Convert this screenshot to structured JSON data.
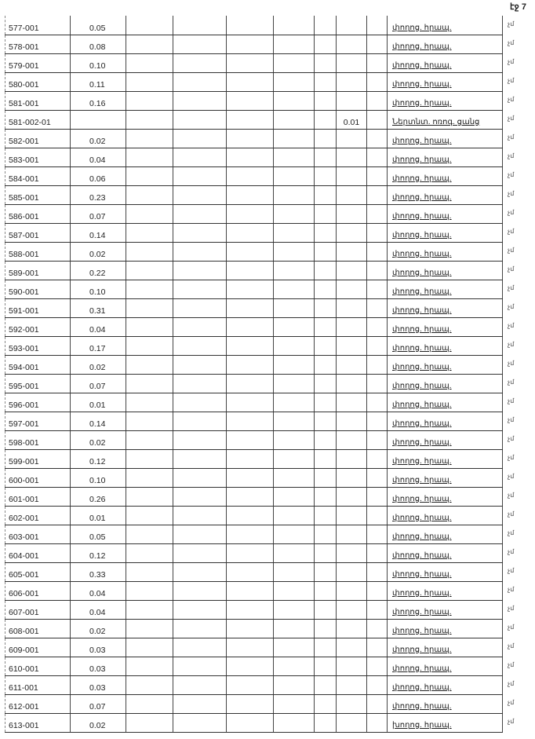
{
  "page_label": "էջ 7",
  "rows": [
    {
      "code": "577-001",
      "area": "0.05",
      "other": "",
      "type": "փողոց. հրապ.",
      "mark": "չմ"
    },
    {
      "code": "578-001",
      "area": "0.08",
      "other": "",
      "type": "փողոց. հրապ.",
      "mark": "չմ"
    },
    {
      "code": "579-001",
      "area": "0.10",
      "other": "",
      "type": "փողոց. հրապ.",
      "mark": "չմ"
    },
    {
      "code": "580-001",
      "area": "0.11",
      "other": "",
      "type": "փողոց. հրապ.",
      "mark": "չմ"
    },
    {
      "code": "581-001",
      "area": "0.16",
      "other": "",
      "type": "փողոց. հրապ.",
      "mark": "չմ"
    },
    {
      "code": "581-002-01",
      "area": "",
      "other": "0.01",
      "type": "Ներտնտ. ոռոգ. ցանց",
      "mark": "չմ"
    },
    {
      "code": "582-001",
      "area": "0.02",
      "other": "",
      "type": "փողոց. հրապ.",
      "mark": "չմ"
    },
    {
      "code": "583-001",
      "area": "0.04",
      "other": "",
      "type": "փողոց. հրապ.",
      "mark": "չմ"
    },
    {
      "code": "584-001",
      "area": "0.06",
      "other": "",
      "type": "փողոց. հրապ.",
      "mark": "չմ"
    },
    {
      "code": "585-001",
      "area": "0.23",
      "other": "",
      "type": "փողոց. հրապ.",
      "mark": "չմ"
    },
    {
      "code": "586-001",
      "area": "0.07",
      "other": "",
      "type": "փողոց. հրապ.",
      "mark": "չմ"
    },
    {
      "code": "587-001",
      "area": "0.14",
      "other": "",
      "type": "փողոց. հրապ.",
      "mark": "չմ"
    },
    {
      "code": "588-001",
      "area": "0.02",
      "other": "",
      "type": "փողոց. հրապ.",
      "mark": "չմ"
    },
    {
      "code": "589-001",
      "area": "0.22",
      "other": "",
      "type": "փողոց. հրապ.",
      "mark": "չմ"
    },
    {
      "code": "590-001",
      "area": "0.10",
      "other": "",
      "type": "փողոց. հրապ.",
      "mark": "չմ"
    },
    {
      "code": "591-001",
      "area": "0.31",
      "other": "",
      "type": "փողոց. հրապ.",
      "mark": "չմ"
    },
    {
      "code": "592-001",
      "area": "0.04",
      "other": "",
      "type": "փողոց. հրապ.",
      "mark": "չմ"
    },
    {
      "code": "593-001",
      "area": "0.17",
      "other": "",
      "type": "փողոց. հրապ.",
      "mark": "չմ"
    },
    {
      "code": "594-001",
      "area": "0.02",
      "other": "",
      "type": "փողոց. հրապ.",
      "mark": "չմ"
    },
    {
      "code": "595-001",
      "area": "0.07",
      "other": "",
      "type": "փողոց. հրապ.",
      "mark": "չմ"
    },
    {
      "code": "596-001",
      "area": "0.01",
      "other": "",
      "type": "փողոց. հրապ.",
      "mark": "չմ"
    },
    {
      "code": "597-001",
      "area": "0.14",
      "other": "",
      "type": "փողոց. հրապ.",
      "mark": "չմ"
    },
    {
      "code": "598-001",
      "area": "0.02",
      "other": "",
      "type": "փողոց. հրապ.",
      "mark": "չմ"
    },
    {
      "code": "599-001",
      "area": "0.12",
      "other": "",
      "type": "փողոց. հրապ.",
      "mark": "չմ"
    },
    {
      "code": "600-001",
      "area": "0.10",
      "other": "",
      "type": "փողոց. հրապ.",
      "mark": "չմ"
    },
    {
      "code": "601-001",
      "area": "0.26",
      "other": "",
      "type": "փողոց. հրապ.",
      "mark": "չմ"
    },
    {
      "code": "602-001",
      "area": "0.01",
      "other": "",
      "type": "փողոց. հրապ.",
      "mark": "չմ"
    },
    {
      "code": "603-001",
      "area": "0.05",
      "other": "",
      "type": "փողոց. հրապ.",
      "mark": "չմ"
    },
    {
      "code": "604-001",
      "area": "0.12",
      "other": "",
      "type": "փողոց. հրապ.",
      "mark": "չմ"
    },
    {
      "code": "605-001",
      "area": "0.33",
      "other": "",
      "type": "փողոց. հրապ.",
      "mark": "չմ"
    },
    {
      "code": "606-001",
      "area": "0.04",
      "other": "",
      "type": "փողոց. հրապ.",
      "mark": "չմ"
    },
    {
      "code": "607-001",
      "area": "0.04",
      "other": "",
      "type": "փողոց. հրապ.",
      "mark": "չմ"
    },
    {
      "code": "608-001",
      "area": "0.02",
      "other": "",
      "type": "փողոց. հրապ.",
      "mark": "չմ"
    },
    {
      "code": "609-001",
      "area": "0.03",
      "other": "",
      "type": "փողոց. հրապ.",
      "mark": "չմ"
    },
    {
      "code": "610-001",
      "area": "0.03",
      "other": "",
      "type": "փողոց. հրապ.",
      "mark": "չմ"
    },
    {
      "code": "611-001",
      "area": "0.03",
      "other": "",
      "type": "փողոց. հրապ.",
      "mark": "չմ"
    },
    {
      "code": "612-001",
      "area": "0.07",
      "other": "",
      "type": "փողոց. հրապ.",
      "mark": "չմ"
    },
    {
      "code": "613-001",
      "area": "0.02",
      "other": "",
      "type": "խողոց. հրապ.",
      "mark": "չմ"
    }
  ]
}
